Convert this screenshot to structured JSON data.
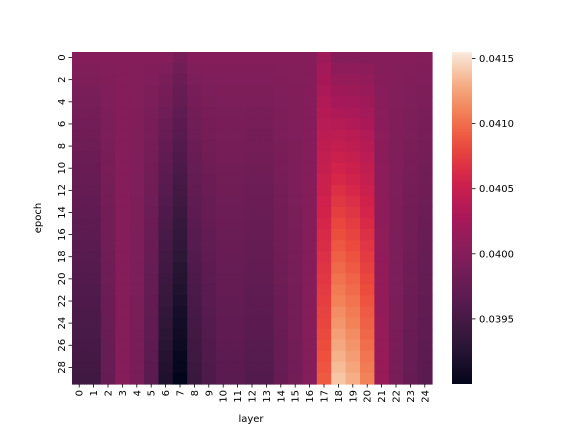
{
  "chart_data": {
    "type": "heatmap",
    "title": "",
    "xlabel": "layer",
    "ylabel": "epoch",
    "x_ticks": [
      "0",
      "1",
      "2",
      "3",
      "4",
      "5",
      "6",
      "7",
      "8",
      "9",
      "10",
      "11",
      "12",
      "13",
      "14",
      "15",
      "16",
      "17",
      "18",
      "19",
      "20",
      "21",
      "22",
      "23",
      "24"
    ],
    "y_ticks": [
      "0",
      "2",
      "4",
      "6",
      "8",
      "10",
      "12",
      "14",
      "16",
      "18",
      "20",
      "22",
      "24",
      "26",
      "28"
    ],
    "n_rows": 30,
    "n_cols": 25,
    "colormap": "rocket",
    "vmin": 0.039,
    "vmax": 0.04155,
    "colorbar_ticks": [
      "0.0395",
      "0.0400",
      "0.0405",
      "0.0410",
      "0.0415"
    ],
    "colorbar_tick_values": [
      0.0395,
      0.04,
      0.0405,
      0.041,
      0.0415
    ],
    "values_row0": [
      0.04,
      0.04,
      0.04,
      0.04,
      0.04,
      0.04,
      0.04,
      0.0399,
      0.04,
      0.04,
      0.04,
      0.04,
      0.04,
      0.04,
      0.04,
      0.04,
      0.04,
      0.0402,
      0.04,
      0.04,
      0.04,
      0.04,
      0.04,
      0.04,
      0.04
    ],
    "values_row29": [
      0.03945,
      0.03945,
      0.03975,
      0.04,
      0.0399,
      0.03965,
      0.0392,
      0.039,
      0.0394,
      0.03955,
      0.03965,
      0.03965,
      0.0396,
      0.0396,
      0.03975,
      0.03985,
      0.04,
      0.0409,
      0.0414,
      0.0413,
      0.0411,
      0.04015,
      0.0399,
      0.03975,
      0.03965
    ],
    "grid": false,
    "legend": "colorbar-right"
  }
}
